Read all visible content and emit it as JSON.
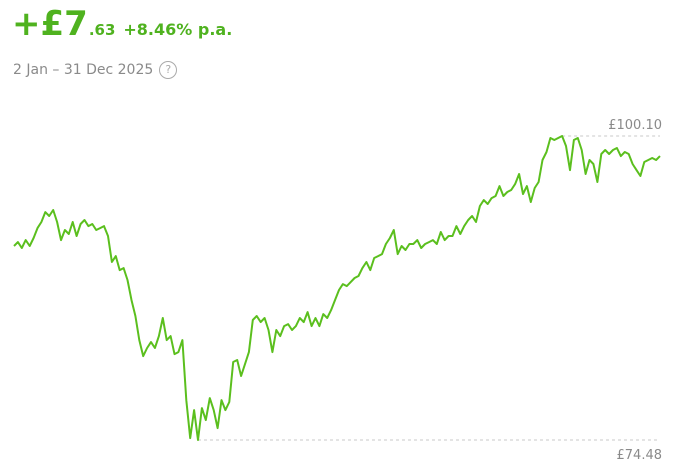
{
  "header": {
    "gain_major": "+£7",
    "gain_minor": ".63",
    "return": "+8.46% p.a.",
    "period": "2 Jan – 31 Dec 2025",
    "help": "?"
  },
  "chart_data": {
    "type": "line",
    "color": "#5bbf1e",
    "ylim": [
      74.48,
      100.1
    ],
    "yticks": [
      {
        "value": 100.1,
        "label": "£100.10"
      },
      {
        "value": 74.48,
        "label": "£74.48"
      }
    ],
    "values": [
      90.83,
      91.16,
      90.66,
      91.33,
      90.83,
      91.5,
      92.34,
      92.85,
      93.69,
      93.36,
      93.86,
      92.85,
      91.33,
      92.18,
      91.84,
      92.85,
      91.67,
      92.68,
      93.02,
      92.51,
      92.68,
      92.18,
      92.34,
      92.51,
      91.67,
      89.48,
      89.98,
      88.8,
      88.97,
      87.96,
      86.27,
      84.93,
      82.9,
      81.55,
      82.23,
      82.73,
      82.23,
      83.24,
      84.76,
      82.9,
      83.24,
      81.72,
      81.89,
      82.9,
      77.84,
      74.64,
      77.0,
      74.48,
      77.17,
      76.16,
      78.01,
      77.0,
      75.48,
      77.84,
      77.0,
      77.68,
      81.05,
      81.22,
      79.87,
      80.88,
      81.89,
      84.59,
      84.93,
      84.42,
      84.76,
      83.75,
      81.89,
      83.75,
      83.24,
      84.08,
      84.25,
      83.75,
      84.08,
      84.76,
      84.42,
      85.26,
      84.08,
      84.76,
      84.08,
      85.09,
      84.76,
      85.43,
      86.27,
      87.12,
      87.62,
      87.45,
      87.79,
      88.13,
      88.3,
      88.97,
      89.48,
      88.8,
      89.82,
      89.98,
      90.15,
      91.0,
      91.5,
      92.18,
      90.15,
      90.83,
      90.49,
      91.0,
      91.0,
      91.33,
      90.66,
      91.0,
      91.16,
      91.33,
      91.0,
      92.01,
      91.33,
      91.67,
      91.67,
      92.51,
      91.84,
      92.51,
      93.02,
      93.36,
      92.85,
      94.2,
      94.7,
      94.37,
      94.87,
      95.04,
      95.88,
      95.04,
      95.38,
      95.55,
      96.05,
      96.9,
      95.21,
      95.88,
      94.54,
      95.72,
      96.22,
      98.08,
      98.75,
      99.93,
      99.76,
      99.93,
      100.1,
      99.26,
      97.23,
      99.76,
      99.93,
      98.92,
      96.9,
      98.08,
      97.74,
      96.22,
      98.58,
      98.92,
      98.58,
      98.92,
      99.09,
      98.41,
      98.75,
      98.58,
      97.74,
      97.23,
      96.73,
      97.91,
      98.08,
      98.25,
      98.08,
      98.41
    ]
  }
}
